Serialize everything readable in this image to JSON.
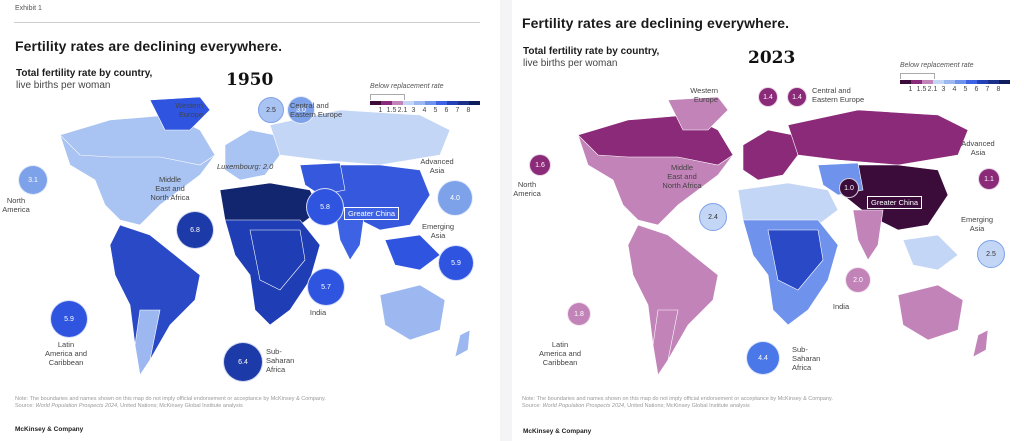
{
  "panels": [
    {
      "exhibit_label": "Exhibit 1",
      "title": "Fertility rates are declining everywhere.",
      "subtitle_bold": "Total fertility rate by country,",
      "subtitle_rest": "live births per woman",
      "year": "1950",
      "annotation": "Luxembourg: 2.0",
      "highlight_tag": "Greater China",
      "regions": [
        {
          "name": "Western Europe",
          "label": "Western\nEurope",
          "value": "2.5",
          "color": "#a9c3f2"
        },
        {
          "name": "Central and Eastern Europe",
          "label": "Central and\nEastern Europe",
          "value": "3.0",
          "color": "#7ea2ea"
        },
        {
          "name": "North America",
          "label": "North\nAmerica",
          "value": "3.1",
          "color": "#7ea2ea"
        },
        {
          "name": "Middle East and North Africa",
          "label": "Middle\nEast and\nNorth Africa",
          "value": "6.8",
          "color": "#1c3aa8"
        },
        {
          "name": "Greater China",
          "label": "",
          "value": "5.8",
          "color": "#2f55e0"
        },
        {
          "name": "Advanced Asia",
          "label": "Advanced\nAsia",
          "value": "4.0",
          "color": "#7ea2ea"
        },
        {
          "name": "Emerging Asia",
          "label": "Emerging\nAsia",
          "value": "5.9",
          "color": "#2f55e0"
        },
        {
          "name": "India",
          "label": "India",
          "value": "5.7",
          "color": "#2f55e0"
        },
        {
          "name": "Latin America and Caribbean",
          "label": "Latin\nAmerica and\nCaribbean",
          "value": "5.9",
          "color": "#2f55e0"
        },
        {
          "name": "Sub-Saharan Africa",
          "label": "Sub-\nSaharan\nAfrica",
          "value": "6.4",
          "color": "#1c3aa8"
        }
      ],
      "note": "Note: The boundaries and names shown on this map do not imply official endorsement or acceptance by McKinsey & Company.",
      "source_prefix": "Source: ",
      "source_italic": "World Population Prospects 2024",
      "source_rest": ", United Nations; McKinsey Global Institute analysis",
      "brand": "McKinsey & Company"
    },
    {
      "title": "Fertility rates are declining everywhere.",
      "subtitle_bold": "Total fertility rate by country,",
      "subtitle_rest": "live births per woman",
      "year": "2023",
      "highlight_tag": "Greater China",
      "regions": [
        {
          "name": "Western Europe",
          "label": "Western\nEurope",
          "value": "1.4",
          "color": "#8a2a78"
        },
        {
          "name": "Central and Eastern Europe",
          "label": "Central and\nEastern Europe",
          "value": "1.4",
          "color": "#8a2a78"
        },
        {
          "name": "North America",
          "label": "North\nAmerica",
          "value": "1.6",
          "color": "#8a2a78"
        },
        {
          "name": "Middle East and North Africa",
          "label": "Middle\nEast and\nNorth Africa",
          "value": "2.4",
          "color": "#c4d6f6"
        },
        {
          "name": "Greater China",
          "label": "",
          "value": "1.0",
          "color": "#3b0c3a"
        },
        {
          "name": "Advanced Asia",
          "label": "Advanced\nAsia",
          "value": "1.1",
          "color": "#8a2a78"
        },
        {
          "name": "Emerging Asia",
          "label": "Emerging\nAsia",
          "value": "2.5",
          "color": "#c4d6f6"
        },
        {
          "name": "India",
          "label": "India",
          "value": "2.0",
          "color": "#c283b8"
        },
        {
          "name": "Latin America and Caribbean",
          "label": "Latin\nAmerica and\nCaribbean",
          "value": "1.8",
          "color": "#c283b8"
        },
        {
          "name": "Sub-Saharan Africa",
          "label": "Sub-\nSaharan\nAfrica",
          "value": "4.4",
          "color": "#4a78e8"
        }
      ],
      "note": "Note: The boundaries and names shown on this map do not imply official endorsement or acceptance by McKinsey & Company.",
      "source_prefix": "Source: ",
      "source_italic": "World Population Prospects 2024",
      "source_rest": ", United Nations; McKinsey Global Institute analysis",
      "brand": "McKinsey & Company"
    }
  ],
  "legend": {
    "title": "Below replacement rate",
    "ticks": [
      "1",
      "1.5",
      "2.1",
      "3",
      "4",
      "5",
      "6",
      "7",
      "8"
    ],
    "colors": [
      "#3b0c3a",
      "#8a2a78",
      "#c283b8",
      "#c4d6f6",
      "#9db8f0",
      "#6f93ec",
      "#3d63e4",
      "#2442b8",
      "#1a2f8a",
      "#0f1d5a"
    ]
  },
  "palette": {
    "panel1": {
      "na": "#a9c3f2",
      "latam": "#2a49c7",
      "latam_south": "#9db8f0",
      "greenland": "#2f55e0",
      "europe": "#a9c3f2",
      "russia": "#c4d6f6",
      "africa": "#1f3db4",
      "mena": "#12266f",
      "asia": "#3658dc",
      "india": "#3d63e4",
      "oceania": "#9db8f0",
      "sea": "#2f55e0"
    },
    "panel2": {
      "na": "#c283b8",
      "canada": "#8a2a78",
      "latam": "#c283b8",
      "greenland": "#c283b8",
      "europe": "#8a2a78",
      "russia": "#8a2a78",
      "africa": "#6f93ec",
      "africa_central": "#2a49c7",
      "mena": "#c4d6f6",
      "asia": "#3b0c3a",
      "central_asia": "#6f93ec",
      "india": "#c283b8",
      "oceania": "#c283b8",
      "sea": "#c4d6f6"
    }
  }
}
